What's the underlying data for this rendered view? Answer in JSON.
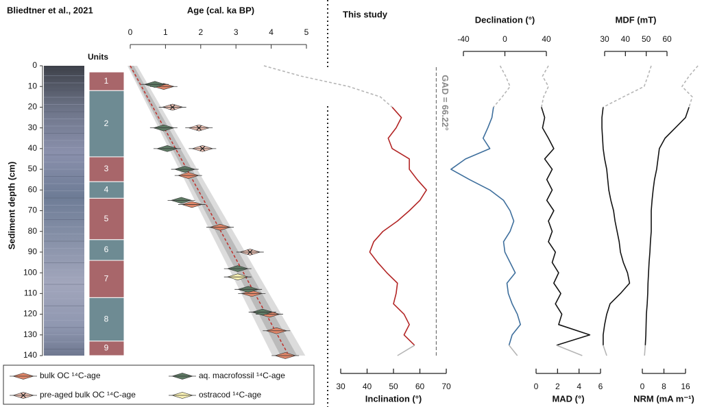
{
  "chart_data": [
    {
      "type": "scatter",
      "title": "Bliedtner et al., 2021",
      "x_label": "Age (cal. ka BP)",
      "y_label": "Sediment depth (cm)",
      "xlim": [
        0,
        5
      ],
      "xticks": [
        0,
        1,
        2,
        3,
        4,
        5
      ],
      "ylim": [
        0,
        140
      ],
      "yticks": [
        0,
        10,
        20,
        30,
        40,
        50,
        60,
        70,
        80,
        90,
        100,
        110,
        120,
        130,
        140
      ],
      "model": {
        "color": "#c0302b",
        "x": [
          0,
          4.5
        ],
        "values": [
          0,
          140
        ]
      },
      "units": {
        "label": "Units",
        "items": [
          {
            "label": "1",
            "top": 3,
            "bottom": 12,
            "color": "#a8666a"
          },
          {
            "label": "2",
            "top": 12,
            "bottom": 44,
            "color": "#6e8b93"
          },
          {
            "label": "3",
            "top": 44,
            "bottom": 56,
            "color": "#a8666a"
          },
          {
            "label": "4",
            "top": 56,
            "bottom": 64,
            "color": "#6e8b93"
          },
          {
            "label": "5",
            "top": 64,
            "bottom": 84,
            "color": "#a8666a"
          },
          {
            "label": "6",
            "top": 84,
            "bottom": 94,
            "color": "#6e8b93"
          },
          {
            "label": "7",
            "top": 94,
            "bottom": 112,
            "color": "#a8666a"
          },
          {
            "label": "8",
            "top": 112,
            "bottom": 133,
            "color": "#6e8b93"
          },
          {
            "label": "9",
            "top": 133,
            "bottom": 140,
            "color": "#a8666a"
          }
        ]
      },
      "series": [
        {
          "name": "bulk OC ¹⁴C-age",
          "color": "#e0876a",
          "x": [
            0.95,
            1.65,
            1.75,
            2.55,
            3.45,
            3.95,
            4.15,
            4.4
          ],
          "values": [
            10,
            53,
            67,
            78,
            110,
            120,
            128,
            140
          ]
        },
        {
          "name": "aq. macrofossil ¹⁴C-age",
          "color": "#5e7a64",
          "x": [
            0.7,
            0.95,
            1.05,
            1.55,
            1.45,
            3.05,
            3.35,
            3.75
          ],
          "values": [
            9,
            30,
            40,
            50,
            65,
            98,
            108,
            119
          ]
        },
        {
          "name": "pre-aged bulk OC ¹⁴C-age",
          "color": "#f0c4b6",
          "marker": "x",
          "x": [
            1.2,
            1.95,
            2.05,
            3.4
          ],
          "values": [
            20,
            30,
            40,
            90
          ]
        },
        {
          "name": "ostracod ¹⁴C-age",
          "color": "#faf2b4",
          "x": [
            3.05
          ],
          "values": [
            102
          ]
        }
      ]
    },
    {
      "type": "line",
      "title": "This study",
      "x_label": "Inclination (°)",
      "xlim": [
        30,
        70
      ],
      "xticks": [
        30,
        40,
        50,
        60,
        70
      ],
      "reference": {
        "value": 66.22,
        "label": "GAD = 66.22°"
      },
      "depth": [
        0,
        5,
        10,
        15,
        20,
        25,
        30,
        35,
        40,
        45,
        50,
        55,
        60,
        65,
        70,
        75,
        80,
        85,
        90,
        95,
        100,
        105,
        110,
        115,
        120,
        125,
        130,
        135,
        140
      ],
      "series": [
        {
          "color": "#b5b5b5",
          "dashed": true,
          "values": [
            0.9,
            15,
            33,
            45,
            49.5,
            null,
            null,
            null,
            null,
            null,
            null,
            null,
            null,
            null,
            null,
            null,
            null,
            null,
            null,
            null,
            null,
            null,
            null,
            null,
            null,
            null,
            null,
            null,
            null
          ]
        },
        {
          "color": "#b22424",
          "values": [
            null,
            null,
            null,
            null,
            49.5,
            53,
            51,
            48,
            49.5,
            56,
            56,
            59,
            62.5,
            60,
            56,
            51.5,
            46,
            42.5,
            41,
            44,
            47.5,
            51.5,
            51,
            50,
            54,
            56,
            54,
            58,
            null
          ]
        },
        {
          "color": "#b5b5b5",
          "values": [
            null,
            null,
            null,
            null,
            null,
            null,
            null,
            null,
            null,
            null,
            null,
            null,
            null,
            null,
            null,
            null,
            null,
            null,
            null,
            null,
            null,
            null,
            null,
            null,
            null,
            null,
            null,
            58,
            51.5
          ]
        }
      ]
    },
    {
      "type": "line",
      "x_label": "Declination (°)",
      "xlim": [
        -40,
        40
      ],
      "xticks": [
        -40,
        0,
        40
      ],
      "depth": [
        0,
        5,
        10,
        15,
        20,
        25,
        30,
        35,
        40,
        45,
        50,
        55,
        60,
        65,
        70,
        75,
        80,
        85,
        90,
        95,
        100,
        105,
        110,
        115,
        120,
        125,
        130,
        135,
        140
      ],
      "series": [
        {
          "color": "#b5b5b5",
          "dashed": true,
          "values": [
            -4.6,
            0.7,
            5,
            -2.6,
            -11,
            null,
            null,
            null,
            null,
            null,
            null,
            null,
            null,
            null,
            null,
            null,
            null,
            null,
            null,
            null,
            null,
            null,
            null,
            null,
            null,
            null,
            null,
            null,
            null
          ]
        },
        {
          "color": "#3d6e9c",
          "values": [
            null,
            null,
            null,
            null,
            -11,
            -12.5,
            -16.5,
            -21,
            -14.5,
            -38,
            -52,
            -34,
            -14.5,
            -1.3,
            5,
            8.6,
            5,
            -1.3,
            0,
            5,
            10,
            2,
            3.3,
            7,
            12,
            15,
            7,
            4,
            null
          ]
        },
        {
          "color": "#b5b5b5",
          "values": [
            null,
            null,
            null,
            null,
            null,
            null,
            null,
            null,
            null,
            null,
            null,
            null,
            null,
            null,
            null,
            null,
            null,
            null,
            null,
            null,
            null,
            null,
            null,
            null,
            null,
            null,
            null,
            4,
            12
          ]
        }
      ]
    },
    {
      "type": "line",
      "x_label": "MAD (°)",
      "xlim": [
        0,
        6
      ],
      "xticks": [
        0,
        2,
        4,
        6
      ],
      "depth": [
        0,
        5,
        10,
        15,
        20,
        25,
        30,
        35,
        40,
        45,
        50,
        55,
        60,
        65,
        70,
        75,
        80,
        85,
        90,
        95,
        100,
        105,
        110,
        115,
        120,
        125,
        130,
        135,
        140
      ],
      "series": [
        {
          "color": "#b5b5b5",
          "dashed": true,
          "values": [
            1.15,
            0.6,
            1.15,
            0.7,
            0.5,
            null,
            null,
            null,
            null,
            null,
            null,
            null,
            null,
            null,
            null,
            null,
            null,
            null,
            null,
            null,
            null,
            null,
            null,
            null,
            null,
            null,
            null,
            null,
            null
          ]
        },
        {
          "color": "#111111",
          "values": [
            null,
            null,
            null,
            null,
            0.5,
            0.8,
            0.6,
            1.15,
            1.65,
            0.8,
            1.5,
            1,
            1.5,
            1,
            1.65,
            1.15,
            1.5,
            1.15,
            1.8,
            1.5,
            2.1,
            1.65,
            2.3,
            1.8,
            2.4,
            2.1,
            5,
            1.9,
            null
          ]
        },
        {
          "color": "#b5b5b5",
          "values": [
            null,
            null,
            null,
            null,
            null,
            null,
            null,
            null,
            null,
            null,
            null,
            null,
            null,
            null,
            null,
            null,
            null,
            null,
            null,
            null,
            null,
            null,
            null,
            null,
            null,
            null,
            null,
            1.9,
            4.3
          ]
        }
      ]
    },
    {
      "type": "line",
      "x_label": "MDF (mT)",
      "xlim": [
        30,
        60
      ],
      "xticks": [
        30,
        40,
        50,
        60
      ],
      "depth": [
        0,
        5,
        10,
        15,
        20,
        25,
        30,
        35,
        40,
        45,
        50,
        55,
        60,
        65,
        70,
        75,
        80,
        85,
        90,
        95,
        100,
        105,
        110,
        115,
        120,
        125,
        130,
        135,
        140
      ],
      "series": [
        {
          "color": "#b5b5b5",
          "dashed": true,
          "values": [
            52.4,
            50.8,
            49,
            39,
            29.3,
            null,
            null,
            null,
            null,
            null,
            null,
            null,
            null,
            null,
            null,
            null,
            null,
            null,
            null,
            null,
            null,
            null,
            null,
            null,
            null,
            null,
            null,
            null,
            null
          ]
        },
        {
          "color": "#111111",
          "values": [
            null,
            null,
            null,
            null,
            29.3,
            28.7,
            28.7,
            29,
            29.3,
            30,
            31,
            31.5,
            32,
            33,
            34.3,
            35,
            36,
            37,
            37.6,
            39,
            41,
            42,
            37.6,
            32.6,
            31,
            30,
            29.3,
            29.3,
            null
          ]
        },
        {
          "color": "#b5b5b5",
          "values": [
            null,
            null,
            null,
            null,
            null,
            null,
            null,
            null,
            null,
            null,
            null,
            null,
            null,
            null,
            null,
            null,
            null,
            null,
            null,
            null,
            null,
            null,
            null,
            null,
            null,
            null,
            null,
            29.3,
            31
          ]
        }
      ]
    },
    {
      "type": "line",
      "x_label": "NRM (mA m⁻¹)",
      "xlim": [
        0,
        16
      ],
      "xticks": [
        0,
        8,
        16
      ],
      "depth": [
        0,
        5,
        10,
        15,
        20,
        25,
        30,
        35,
        40,
        45,
        50,
        55,
        60,
        65,
        70,
        75,
        80,
        85,
        90,
        95,
        100,
        105,
        110,
        115,
        120,
        125,
        130,
        135,
        140
      ],
      "series": [
        {
          "color": "#b5b5b5",
          "dashed": true,
          "values": [
            20.6,
            17.3,
            14.7,
            18.5,
            17.3,
            null,
            null,
            null,
            null,
            null,
            null,
            null,
            null,
            null,
            null,
            null,
            null,
            null,
            null,
            null,
            null,
            null,
            null,
            null,
            null,
            null,
            null,
            null,
            null
          ]
        },
        {
          "color": "#111111",
          "values": [
            null,
            null,
            null,
            null,
            17.3,
            16,
            12.2,
            8.4,
            6.3,
            5.8,
            5.3,
            4.5,
            4,
            3.6,
            3.3,
            3.3,
            3.3,
            3,
            2.8,
            2.5,
            2.3,
            2.1,
            2,
            1.8,
            1.5,
            1.4,
            1.3,
            1.1,
            null
          ]
        },
        {
          "color": "#b5b5b5",
          "values": [
            null,
            null,
            null,
            null,
            null,
            null,
            null,
            null,
            null,
            null,
            null,
            null,
            null,
            null,
            null,
            null,
            null,
            null,
            null,
            null,
            null,
            null,
            null,
            null,
            null,
            null,
            null,
            1.1,
            0.8
          ]
        }
      ]
    }
  ]
}
